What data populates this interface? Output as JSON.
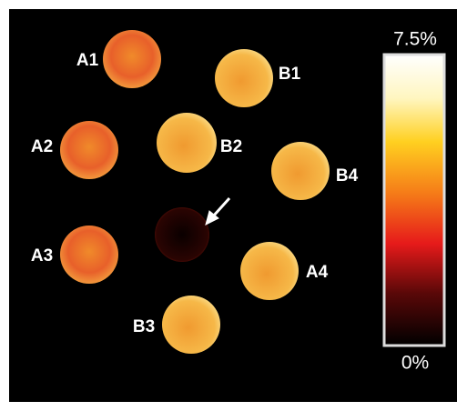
{
  "samples": [
    "A1",
    "B1",
    "A2",
    "B2",
    "B4",
    "A3",
    "A4",
    "B3"
  ],
  "colorbar": {
    "max_label": "7.5%",
    "min_label": "0%"
  }
}
